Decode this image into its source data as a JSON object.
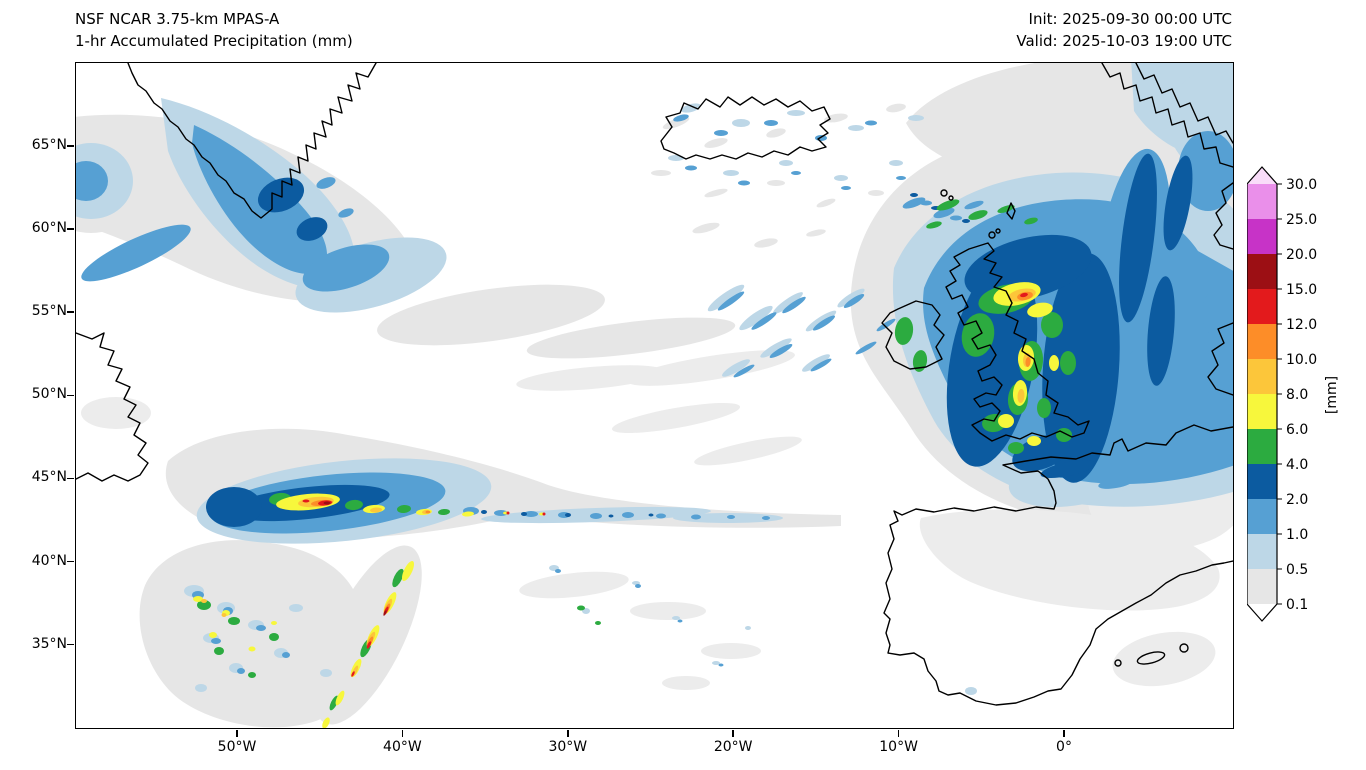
{
  "header": {
    "model": "NSF NCAR 3.75-km MPAS-A",
    "product": "1-hr Accumulated Precipitation (mm)",
    "init": "Init: 2025-09-30 00:00 UTC",
    "valid": "Valid: 2025-10-03 19:00 UTC"
  },
  "axes": {
    "lat_ticks": [
      "65°N",
      "60°N",
      "55°N",
      "50°N",
      "45°N",
      "40°N",
      "35°N"
    ],
    "lon_ticks": [
      "50°W",
      "40°W",
      "30°W",
      "20°W",
      "10°W",
      "0°"
    ]
  },
  "colorbar": {
    "unit": "[mm]",
    "tick_labels": [
      "0.1",
      "0.5",
      "1.0",
      "2.0",
      "4.0",
      "6.0",
      "8.0",
      "10.0",
      "12.0",
      "15.0",
      "20.0",
      "25.0",
      "30.0"
    ],
    "segment_colors_bottom_up": [
      "#e6e6e6",
      "#bdd7e7",
      "#56a0d3",
      "#0c5ba0",
      "#2cab40",
      "#f7f73c",
      "#fcc63a",
      "#fd8d28",
      "#e31a1c",
      "#9c0f14",
      "#c733c7",
      "#ea8fea"
    ],
    "under_color": "#ffffff",
    "over_color": "#f9dcf9"
  },
  "map": {
    "regions_visible": [
      "Greenland",
      "Iceland",
      "Faroe Islands",
      "Great Britain",
      "Ireland",
      "France",
      "Iberian Peninsula",
      "Newfoundland",
      "Norway",
      "Denmark"
    ]
  }
}
